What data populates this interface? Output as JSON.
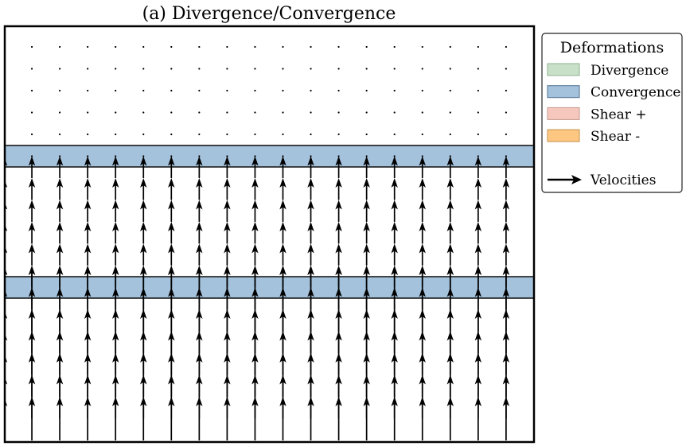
{
  "figure": {
    "title": "(a) Divergence/Convergence"
  },
  "legend": {
    "title": "Deformations",
    "items": [
      {
        "label": "Divergence",
        "fill": "#c8e0c8",
        "stroke": "#8fb08f"
      },
      {
        "label": "Convergence",
        "fill": "#a4c2dc",
        "stroke": "#4f6f8f"
      },
      {
        "label": "Shear +",
        "fill": "#f6c7bd",
        "stroke": "#c59a90"
      },
      {
        "label": "Shear -",
        "fill": "#fdc781",
        "stroke": "#c2914c"
      }
    ],
    "velocity_label": "Velocities"
  },
  "deformation_bands": [
    {
      "type": "Convergence",
      "grid_row_center": 5
    },
    {
      "type": "Convergence",
      "grid_row_center": 11
    }
  ],
  "velocity_field": {
    "columns": 19,
    "rows": 19,
    "zones": [
      {
        "rows_from": 0,
        "rows_to": 5,
        "magnitude": 0
      },
      {
        "rows_from": 6,
        "rows_to": 11,
        "magnitude": 1
      },
      {
        "rows_from": 12,
        "rows_to": 18,
        "magnitude": 2
      }
    ],
    "direction": "up"
  },
  "colors": {
    "frame": "#000000",
    "arrow": "#000000"
  }
}
